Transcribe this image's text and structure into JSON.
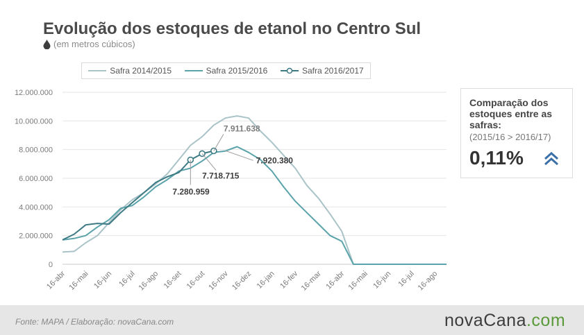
{
  "header": {
    "title": "Evolução dos estoques de etanol no Centro Sul",
    "subtitle": "(em metros cúbicos)"
  },
  "infobox": {
    "title": "Comparação dos estoques entre as safras:",
    "comparison": "(2015/16 > 2016/17)",
    "value": "0,11%"
  },
  "footer": {
    "source": "Fonte: MAPA  / Elaboração: novaCana.com",
    "brand_main": "novaCana",
    "brand_suffix": ".com"
  },
  "chart_data": {
    "type": "line",
    "title": "Evolução dos estoques de etanol no Centro Sul",
    "subtitle": "(em metros cúbicos)",
    "xlabel": "",
    "ylabel": "",
    "ylim": [
      0,
      12000000
    ],
    "yticks": [
      0,
      2000000,
      4000000,
      6000000,
      8000000,
      10000000,
      12000000
    ],
    "ytick_labels": [
      "0",
      "2.000.000",
      "4.000.000",
      "6.000.000",
      "8.000.000",
      "10.000.000",
      "12.000.000"
    ],
    "xtick_labels": [
      "16-abr",
      "16-mai",
      "16-jun",
      "16-jul",
      "16-ago",
      "16-set",
      "16-out",
      "16-nov",
      "16-dez",
      "16-jan",
      "16-fev",
      "16-mar",
      "16-abr",
      "16-mai",
      "16-jun",
      "16-jul",
      "16-ago"
    ],
    "grid": "horizontal",
    "legend_position": "top",
    "series": [
      {
        "name": "Safra 2014/2015",
        "color": "#a9c3c8",
        "points": [
          [
            0,
            850000
          ],
          [
            0.5,
            900000
          ],
          [
            1,
            1500000
          ],
          [
            1.5,
            2000000
          ],
          [
            2,
            2900000
          ],
          [
            2.5,
            3800000
          ],
          [
            3,
            4500000
          ],
          [
            3.5,
            5000000
          ],
          [
            4,
            5600000
          ],
          [
            4.5,
            6300000
          ],
          [
            5,
            7300000
          ],
          [
            5.5,
            8300000
          ],
          [
            6,
            8900000
          ],
          [
            6.5,
            9700000
          ],
          [
            7,
            10200000
          ],
          [
            7.5,
            10350000
          ],
          [
            8,
            10200000
          ],
          [
            8.5,
            9300000
          ],
          [
            9,
            8500000
          ],
          [
            9.5,
            7600000
          ],
          [
            10,
            6700000
          ],
          [
            10.5,
            5500000
          ],
          [
            11,
            4600000
          ],
          [
            11.5,
            3500000
          ],
          [
            12,
            2300000
          ],
          [
            12.5,
            0
          ],
          [
            13,
            0
          ],
          [
            14,
            0
          ],
          [
            15,
            0
          ],
          [
            16,
            0
          ],
          [
            16.5,
            0
          ]
        ]
      },
      {
        "name": "Safra 2015/2016",
        "color": "#5ba3aa",
        "points": [
          [
            0,
            1700000
          ],
          [
            0.5,
            1800000
          ],
          [
            1,
            2000000
          ],
          [
            1.5,
            2600000
          ],
          [
            2,
            3100000
          ],
          [
            2.5,
            3900000
          ],
          [
            3,
            4100000
          ],
          [
            3.5,
            4700000
          ],
          [
            4,
            5400000
          ],
          [
            4.5,
            5900000
          ],
          [
            5,
            6500000
          ],
          [
            5.5,
            6700000
          ],
          [
            6,
            7200000
          ],
          [
            6.5,
            7800000
          ],
          [
            7,
            7900000
          ],
          [
            7.5,
            8200000
          ],
          [
            8,
            7800000
          ],
          [
            8.5,
            7300000
          ],
          [
            9,
            6500000
          ],
          [
            9.5,
            5400000
          ],
          [
            10,
            4400000
          ],
          [
            10.5,
            3600000
          ],
          [
            11,
            2800000
          ],
          [
            11.5,
            2000000
          ],
          [
            12,
            1600000
          ],
          [
            12.5,
            0
          ],
          [
            13,
            0
          ],
          [
            14,
            0
          ],
          [
            15,
            0
          ],
          [
            16,
            0
          ],
          [
            16.5,
            0
          ]
        ]
      },
      {
        "name": "Safra 2016/2017",
        "color": "#3d7a84",
        "points": [
          [
            0,
            1700000
          ],
          [
            0.5,
            2100000
          ],
          [
            1,
            2750000
          ],
          [
            1.5,
            2850000
          ],
          [
            2,
            2800000
          ],
          [
            2.5,
            3600000
          ],
          [
            3,
            4300000
          ],
          [
            3.5,
            5000000
          ],
          [
            4,
            5700000
          ],
          [
            4.5,
            6100000
          ],
          [
            5,
            6400000
          ],
          [
            5.5,
            7280959
          ],
          [
            6,
            7718715
          ],
          [
            6.5,
            7911638
          ]
        ],
        "marked_points": [
          [
            5.5,
            7280959
          ],
          [
            6,
            7718715
          ],
          [
            6.5,
            7911638
          ]
        ]
      }
    ],
    "annotations": [
      {
        "text": "7.280.959",
        "x": 5.5,
        "y": 7280959,
        "series": "Safra 2016/2017"
      },
      {
        "text": "7.718.715",
        "x": 6,
        "y": 7718715,
        "series": "Safra 2016/2017"
      },
      {
        "text": "7.911.638",
        "x": 6.5,
        "y": 7911638,
        "series": "Safra 2016/2017"
      },
      {
        "text": "7.920.380",
        "x": 7,
        "y": 7920380,
        "series": "Safra 2015/2016"
      }
    ]
  }
}
